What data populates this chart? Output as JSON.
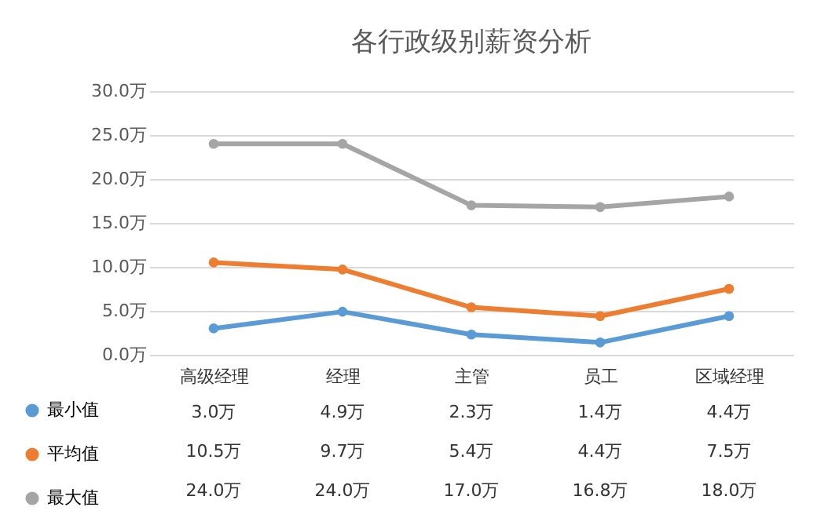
{
  "chart_data": {
    "type": "line",
    "title": "各行政级别薪资分析",
    "categories": [
      "高级经理",
      "经理",
      "主管",
      "员工",
      "区域经理"
    ],
    "series": [
      {
        "name": "最小值",
        "color": "#5b9bd5",
        "values": [
          3.0,
          4.9,
          2.3,
          1.4,
          4.4
        ],
        "value_labels": [
          "3.0万",
          "4.9万",
          "2.3万",
          "1.4万",
          "4.4万"
        ]
      },
      {
        "name": "平均值",
        "color": "#ed7d31",
        "values": [
          10.5,
          9.7,
          5.4,
          4.4,
          7.5
        ],
        "value_labels": [
          "10.5万",
          "9.7万",
          "5.4万",
          "4.4万",
          "7.5万"
        ]
      },
      {
        "name": "最大值",
        "color": "#a5a5a5",
        "values": [
          24.0,
          24.0,
          17.0,
          16.8,
          18.0
        ],
        "value_labels": [
          "24.0万",
          "24.0万",
          "17.0万",
          "16.8万",
          "18.0万"
        ]
      }
    ],
    "ylim": [
      0,
      30
    ],
    "yticks": [
      {
        "value": 0,
        "label": "0.0万"
      },
      {
        "value": 5,
        "label": "5.0万"
      },
      {
        "value": 10,
        "label": "10.0万"
      },
      {
        "value": 15,
        "label": "15.0万"
      },
      {
        "value": 20,
        "label": "20.0万"
      },
      {
        "value": 25,
        "label": "25.0万"
      },
      {
        "value": 30,
        "label": "30.0万"
      }
    ],
    "grid": "y",
    "legend": "bottom left",
    "marker": "circle",
    "line_style": "solid"
  }
}
